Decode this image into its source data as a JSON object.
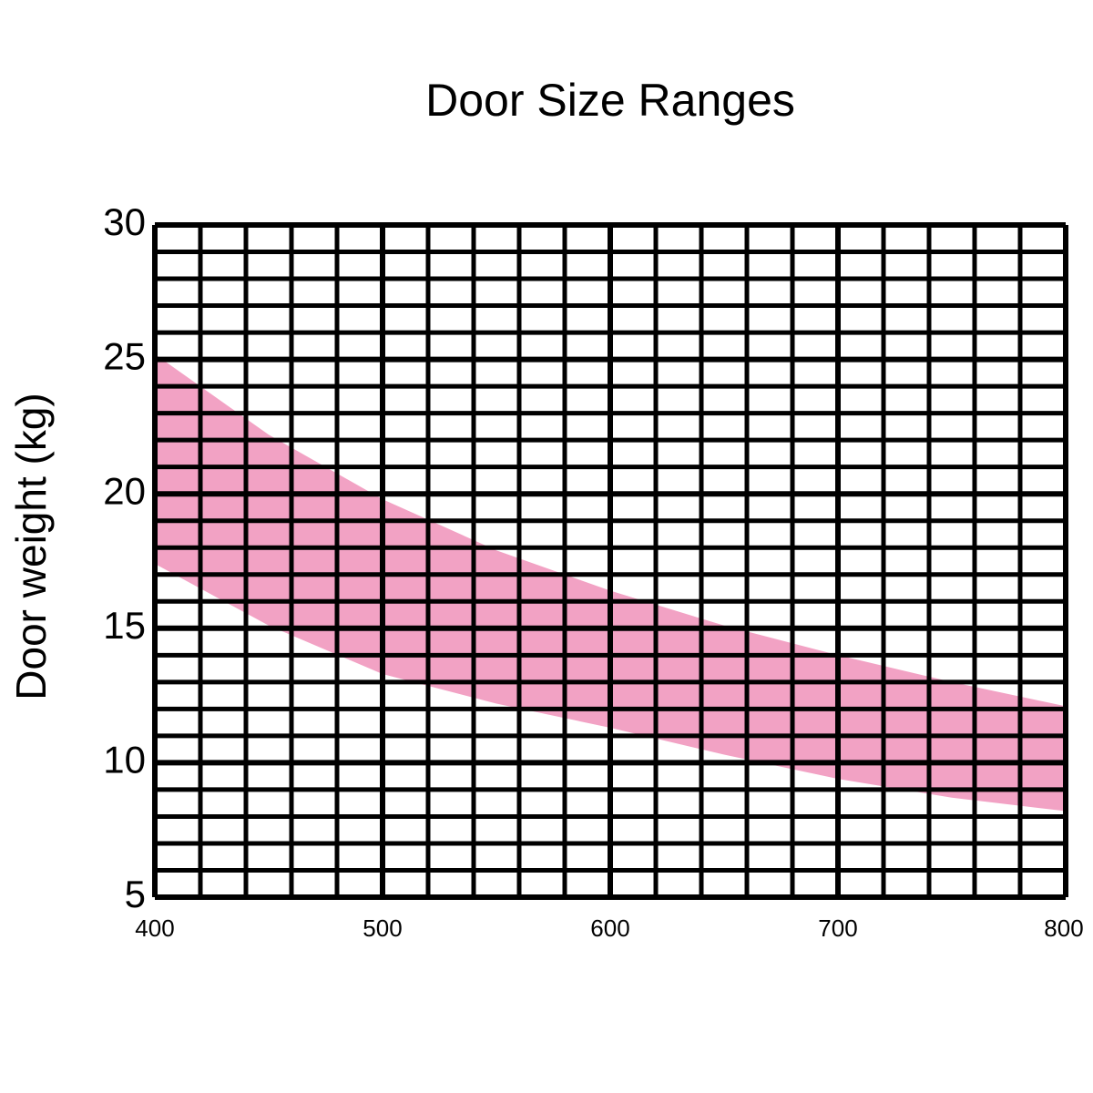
{
  "chart_data": {
    "type": "band",
    "title": "Door Size Ranges",
    "y_label": "Door weight (kg)",
    "x": [
      400,
      450,
      500,
      550,
      600,
      650,
      700,
      750,
      800
    ],
    "band": {
      "color": "#f2a2c4",
      "upper": [
        25.2,
        22.2,
        19.8,
        17.9,
        16.4,
        15.1,
        14.0,
        13.0,
        12.1
      ],
      "lower": [
        17.4,
        15.1,
        13.3,
        12.2,
        11.3,
        10.3,
        9.4,
        8.7,
        8.2
      ]
    },
    "xlim": [
      400,
      800
    ],
    "ylim": [
      5,
      30
    ],
    "xticks": [
      400,
      500,
      600,
      700,
      800
    ],
    "yticks": [
      5,
      10,
      15,
      20,
      25,
      30
    ],
    "xminorticks": [
      420,
      440,
      460,
      480,
      520,
      540,
      560,
      580,
      620,
      640,
      660,
      680,
      720,
      740,
      760,
      780
    ],
    "yminorticks": [
      6,
      7,
      8,
      9,
      11,
      12,
      13,
      14,
      16,
      17,
      18,
      19,
      21,
      22,
      23,
      24,
      26,
      27,
      28,
      29
    ],
    "grid": true,
    "grid_color": "#000000"
  }
}
